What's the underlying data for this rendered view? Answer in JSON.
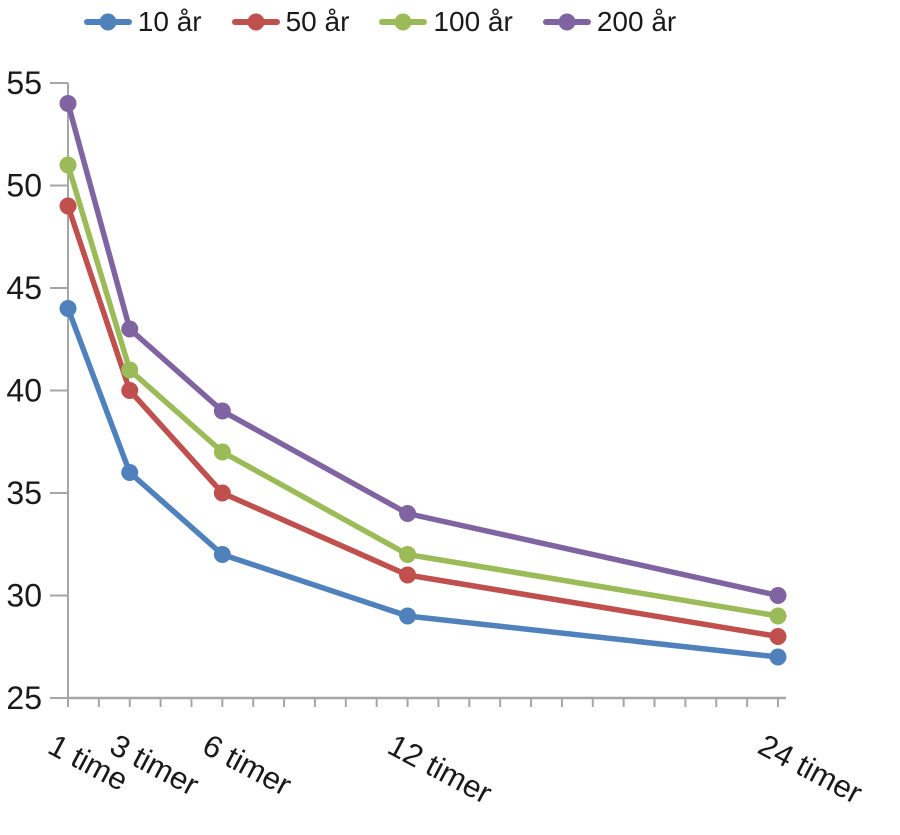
{
  "chart_data": {
    "type": "line",
    "title": "",
    "x": [
      1,
      3,
      6,
      12,
      24
    ],
    "categories": [
      "1 time",
      "3 timer",
      "6 timer",
      "12 timer",
      "24 timer"
    ],
    "series": [
      {
        "name": "10 år",
        "color": "#4F81BD",
        "values": [
          44,
          36,
          32,
          29,
          27
        ]
      },
      {
        "name": "50 år",
        "color": "#C0504D",
        "values": [
          49,
          40,
          35,
          31,
          28
        ]
      },
      {
        "name": "100 år",
        "color": "#9BBB59",
        "values": [
          51,
          41,
          37,
          32,
          29
        ]
      },
      {
        "name": "200 år",
        "color": "#8064A2",
        "values": [
          54,
          43,
          39,
          34,
          30
        ]
      }
    ],
    "xlim": [
      1,
      24
    ],
    "ylim": [
      25,
      55
    ],
    "ytick_step": 5,
    "ytick_labels": [
      "55",
      "50",
      "45",
      "40",
      "35",
      "30",
      "25"
    ],
    "minor_xtick_every_hours": 1,
    "legend_position": "top",
    "grid": false,
    "axis_color": "#A6A6A6",
    "text_color": "#1A1A1A"
  }
}
